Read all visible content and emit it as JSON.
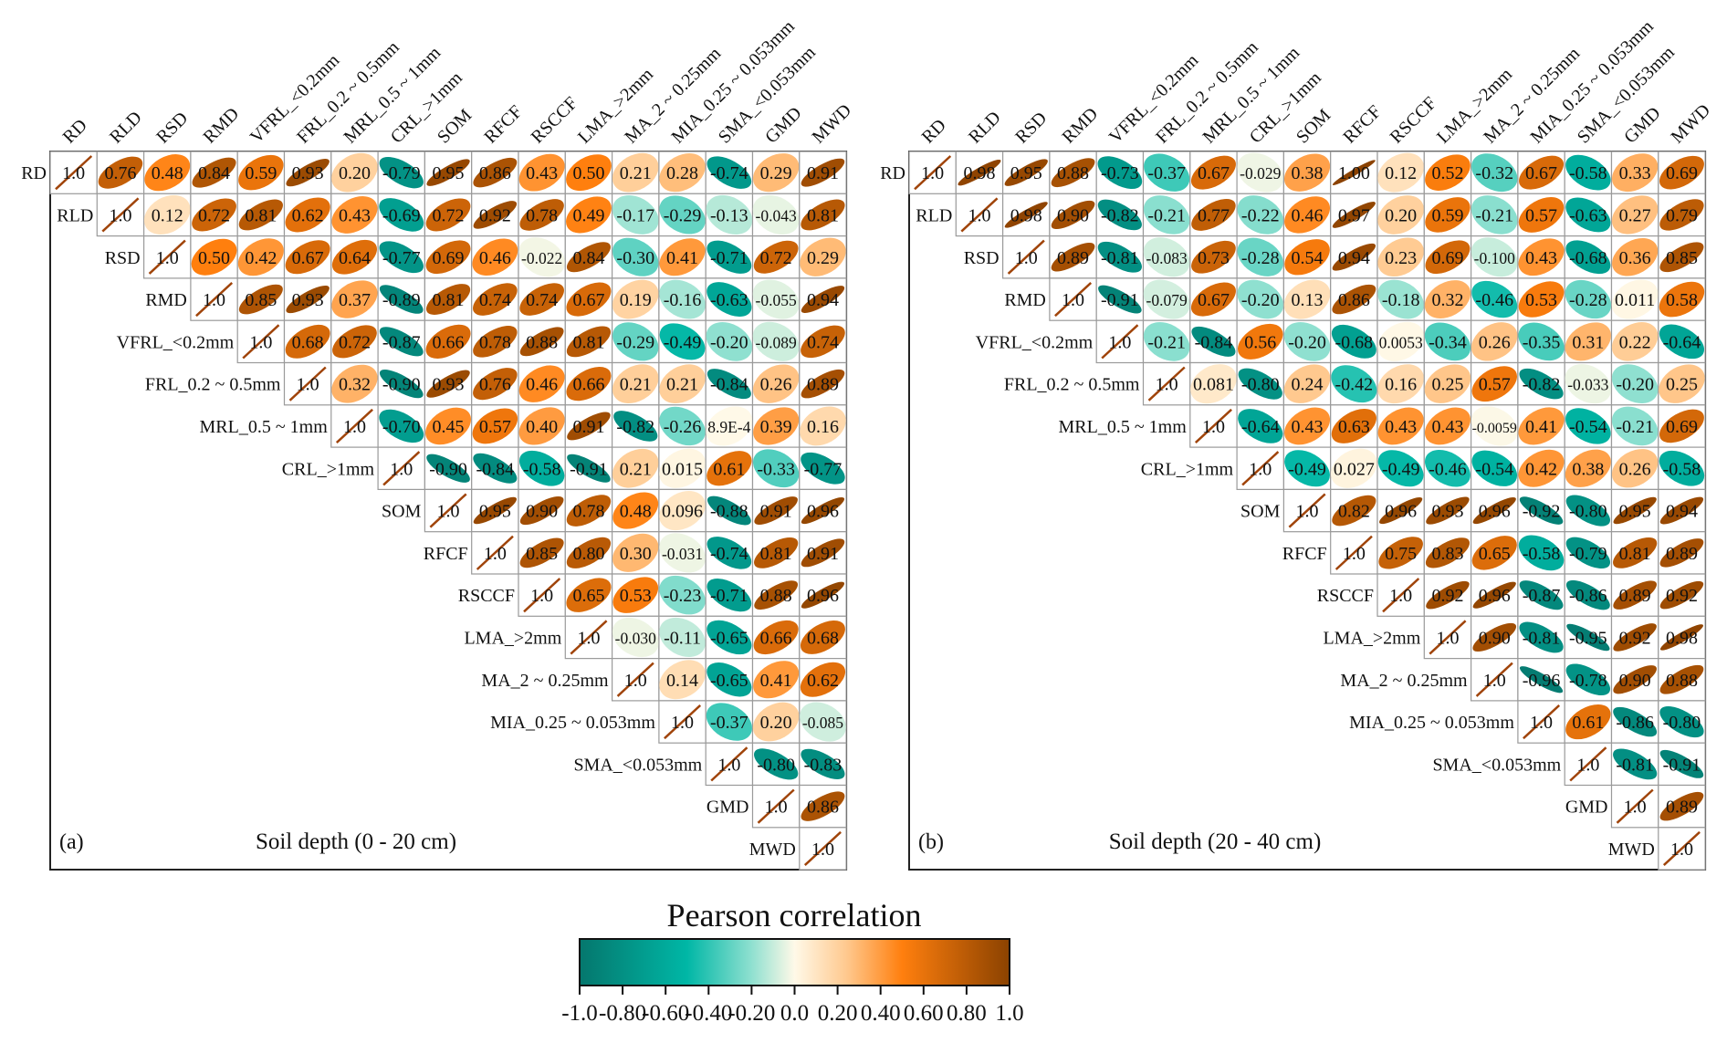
{
  "chart_data": {
    "type": "heatmap",
    "subtype": "correlogram-upper-triangle-ellipse",
    "variables": [
      "RD",
      "RLD",
      "RSD",
      "RMD",
      "VFRL_<0.2mm",
      "FRL_0.2 ~ 0.5mm",
      "MRL_0.5 ~ 1mm",
      "CRL_>1mm",
      "SOM",
      "RFCF",
      "RSCCF",
      "LMA_>2mm",
      "MA_2 ~ 0.25mm",
      "MIA_0.25 ~ 0.053mm",
      "SMA_<0.053mm",
      "GMD",
      "MWD"
    ],
    "legend": {
      "title": "Pearson correlation",
      "ticks": [
        "-1.0",
        "-0.80",
        "-0.60",
        "-0.40",
        "-0.20",
        "0.0",
        "0.20",
        "0.40",
        "0.60",
        "0.80",
        "1.0"
      ],
      "range": [
        -1.0,
        1.0
      ],
      "colors": [
        "#05776d",
        "#00b7a6",
        "#ffffff",
        "#fff9e8",
        "#ff7f0e",
        "#8b4200"
      ],
      "placement": "bottom-center"
    },
    "panels": [
      {
        "tag": "(a)",
        "title": "Soil depth (0 - 20 cm)",
        "rows": [
          [
            "1.0",
            "0.76",
            "0.48",
            "0.84",
            "0.59",
            "0.93",
            "0.20",
            "-0.79",
            "0.95",
            "0.86",
            "0.43",
            "0.50",
            "0.21",
            "0.28",
            "-0.74",
            "0.29",
            "0.91"
          ],
          [
            "1.0",
            "0.12",
            "0.72",
            "0.81",
            "0.62",
            "0.43",
            "-0.69",
            "0.72",
            "0.92",
            "0.78",
            "0.49",
            "-0.17",
            "-0.29",
            "-0.13",
            "-0.043",
            "0.81"
          ],
          [
            "1.0",
            "0.50",
            "0.42",
            "0.67",
            "0.64",
            "-0.77",
            "0.69",
            "0.46",
            "-0.022",
            "0.84",
            "-0.30",
            "0.41",
            "-0.71",
            "0.72",
            "0.29"
          ],
          [
            "1.0",
            "0.85",
            "0.93",
            "0.37",
            "-0.89",
            "0.81",
            "0.74",
            "0.74",
            "0.67",
            "0.19",
            "-0.16",
            "-0.63",
            "-0.055",
            "0.94"
          ],
          [
            "1.0",
            "0.68",
            "0.72",
            "-0.87",
            "0.66",
            "0.78",
            "0.88",
            "0.81",
            "-0.29",
            "-0.49",
            "-0.20",
            "-0.089",
            "0.74"
          ],
          [
            "1.0",
            "0.32",
            "-0.90",
            "0.93",
            "0.76",
            "0.46",
            "0.66",
            "0.21",
            "0.21",
            "-0.84",
            "0.26",
            "0.89"
          ],
          [
            "1.0",
            "-0.70",
            "0.45",
            "0.57",
            "0.40",
            "0.91",
            "-0.82",
            "-0.26",
            "8.9E-4",
            "0.39",
            "0.16"
          ],
          [
            "1.0",
            "-0.90",
            "-0.84",
            "-0.58",
            "-0.91",
            "0.21",
            "0.015",
            "0.61",
            "-0.33",
            "-0.77"
          ],
          [
            "1.0",
            "0.95",
            "0.90",
            "0.78",
            "0.48",
            "0.096",
            "-0.88",
            "0.91",
            "0.96"
          ],
          [
            "1.0",
            "0.85",
            "0.80",
            "0.30",
            "-0.031",
            "-0.74",
            "0.81",
            "0.91"
          ],
          [
            "1.0",
            "0.65",
            "0.53",
            "-0.23",
            "-0.71",
            "0.88",
            "0.96"
          ],
          [
            "1.0",
            "-0.030",
            "-0.11",
            "-0.65",
            "0.66",
            "0.68"
          ],
          [
            "1.0",
            "0.14",
            "-0.65",
            "0.41",
            "0.62"
          ],
          [
            "1.0",
            "-0.37",
            "0.20",
            "-0.085"
          ],
          [
            "1.0",
            "-0.80",
            "-0.83"
          ],
          [
            "1.0",
            "0.86"
          ],
          [
            "1.0"
          ]
        ]
      },
      {
        "tag": "(b)",
        "title": "Soil depth (20 - 40 cm)",
        "rows": [
          [
            "1.0",
            "0.98",
            "0.95",
            "0.88",
            "-0.73",
            "-0.37",
            "0.67",
            "-0.029",
            "0.38",
            "1.00",
            "0.12",
            "0.52",
            "-0.32",
            "0.67",
            "-0.58",
            "0.33",
            "0.69"
          ],
          [
            "1.0",
            "0.98",
            "0.90",
            "-0.82",
            "-0.21",
            "0.77",
            "-0.22",
            "0.46",
            "0.97",
            "0.20",
            "0.59",
            "-0.21",
            "0.57",
            "-0.63",
            "0.27",
            "0.79"
          ],
          [
            "1.0",
            "0.89",
            "-0.81",
            "-0.083",
            "0.73",
            "-0.28",
            "0.54",
            "0.94",
            "0.23",
            "0.69",
            "-0.100",
            "0.43",
            "-0.68",
            "0.36",
            "0.85"
          ],
          [
            "1.0",
            "-0.91",
            "-0.079",
            "0.67",
            "-0.20",
            "0.13",
            "0.86",
            "-0.18",
            "0.32",
            "-0.46",
            "0.53",
            "-0.28",
            "0.011",
            "0.58"
          ],
          [
            "1.0",
            "-0.21",
            "-0.84",
            "0.56",
            "-0.20",
            "-0.68",
            "0.0053",
            "-0.34",
            "0.26",
            "-0.35",
            "0.31",
            "0.22",
            "-0.64"
          ],
          [
            "1.0",
            "0.081",
            "-0.80",
            "0.24",
            "-0.42",
            "0.16",
            "0.25",
            "0.57",
            "-0.82",
            "-0.033",
            "-0.20",
            "0.25"
          ],
          [
            "1.0",
            "-0.64",
            "0.43",
            "0.63",
            "0.43",
            "0.43",
            "-0.0059",
            "0.41",
            "-0.54",
            "-0.21",
            "0.69"
          ],
          [
            "1.0",
            "-0.49",
            "0.027",
            "-0.49",
            "-0.46",
            "-0.54",
            "0.42",
            "0.38",
            "0.26",
            "-0.58"
          ],
          [
            "1.0",
            "0.82",
            "0.96",
            "0.93",
            "0.96",
            "-0.92",
            "-0.80",
            "0.95",
            "0.94"
          ],
          [
            "1.0",
            "0.75",
            "0.83",
            "0.65",
            "-0.58",
            "-0.79",
            "0.81",
            "0.89"
          ],
          [
            "1.0",
            "0.92",
            "0.96",
            "-0.87",
            "-0.86",
            "0.89",
            "0.92"
          ],
          [
            "1.0",
            "0.90",
            "-0.81",
            "-0.95",
            "0.92",
            "0.98"
          ],
          [
            "1.0",
            "-0.96",
            "-0.78",
            "0.90",
            "0.88"
          ],
          [
            "1.0",
            "0.61",
            "-0.86",
            "-0.80"
          ],
          [
            "1.0",
            "-0.81",
            "-0.91"
          ],
          [
            "1.0",
            "0.89"
          ],
          [
            "1.0"
          ]
        ]
      }
    ]
  }
}
